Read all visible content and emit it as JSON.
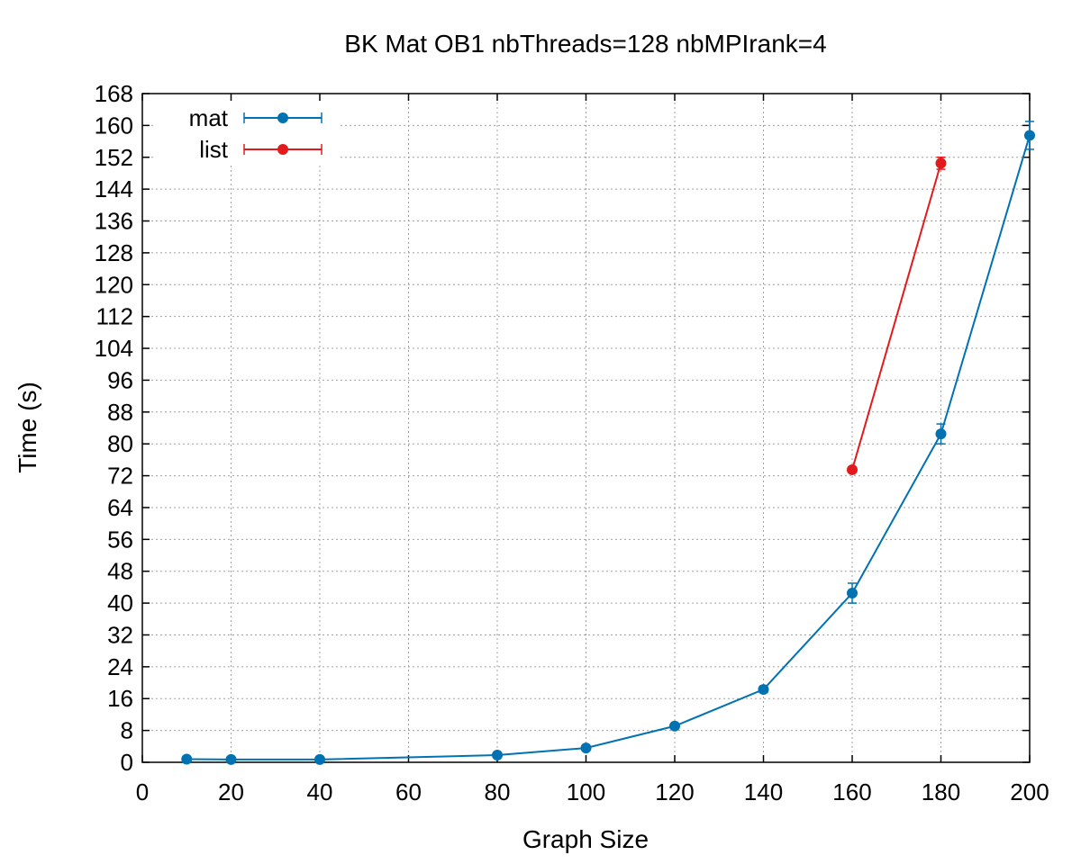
{
  "chart_data": {
    "type": "line",
    "title": "BK Mat OB1 nbThreads=128 nbMPIrank=4",
    "xlabel": "Graph Size",
    "ylabel": "Time (s)",
    "xlim": [
      0,
      200
    ],
    "ylim": [
      0,
      168
    ],
    "xticks": [
      0,
      20,
      40,
      60,
      80,
      100,
      120,
      140,
      160,
      180,
      200
    ],
    "yticks": [
      0,
      8,
      16,
      24,
      32,
      40,
      48,
      56,
      64,
      72,
      80,
      88,
      96,
      104,
      112,
      120,
      128,
      136,
      144,
      152,
      160,
      168
    ],
    "grid": true,
    "legend_position": "top-left",
    "series": [
      {
        "name": "mat",
        "color": "#0072b2",
        "x": [
          10,
          20,
          40,
          80,
          100,
          120,
          140,
          160,
          180,
          200
        ],
        "y": [
          0.8,
          0.7,
          0.7,
          1.8,
          3.6,
          9.1,
          18.3,
          42.5,
          82.5,
          157.5
        ],
        "err": [
          0.2,
          0.2,
          0.2,
          0.3,
          0.4,
          0.6,
          0.8,
          2.5,
          2.5,
          3.5
        ]
      },
      {
        "name": "list",
        "color": "#e31a1c",
        "x": [
          160,
          180
        ],
        "y": [
          73.5,
          150.5
        ],
        "err": [
          0.6,
          1.5
        ]
      }
    ]
  }
}
